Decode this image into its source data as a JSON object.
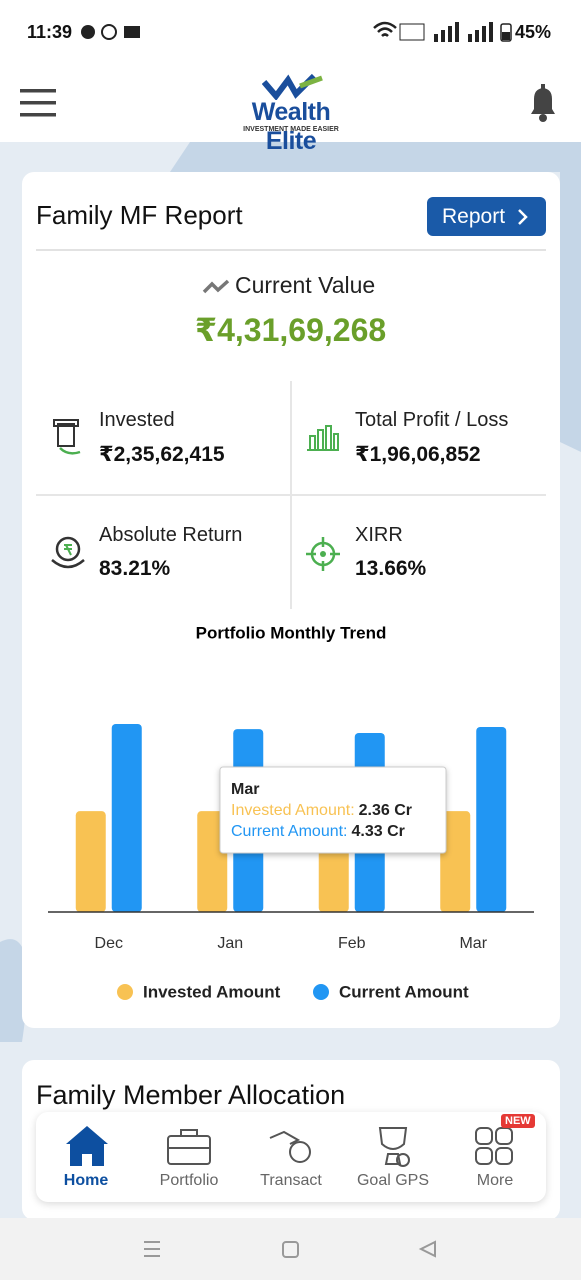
{
  "status_bar": {
    "time": "11:39",
    "battery": "45%"
  },
  "header": {
    "brand": "Wealth Elite",
    "tagline": "INVESTMENT MADE EASIER"
  },
  "report_card": {
    "title": "Family MF Report",
    "button": "Report",
    "current_value_label": "Current Value",
    "current_value": "₹4,31,69,268",
    "stats": [
      {
        "label": "Invested",
        "value": "₹2,35,62,415"
      },
      {
        "label": "Total Profit / Loss",
        "value": "₹1,96,06,852"
      },
      {
        "label": "Absolute Return",
        "value": "83.21%"
      },
      {
        "label": "XIRR",
        "value": "13.66%"
      }
    ]
  },
  "chart_data": {
    "type": "bar",
    "title": "Portfolio Monthly Trend",
    "categories": [
      "Dec",
      "Jan",
      "Feb",
      "Mar"
    ],
    "series": [
      {
        "name": "Invested Amount",
        "color": "#f8c253",
        "values": [
          2.36,
          2.36,
          2.36,
          2.36
        ],
        "value_labels": [
          null,
          null,
          null,
          "2.36 Cr"
        ]
      },
      {
        "name": "Current Amount",
        "color": "#2196f3",
        "values": [
          4.4,
          4.28,
          4.19,
          4.33
        ],
        "value_labels": [
          null,
          null,
          null,
          "4.33 Cr"
        ]
      }
    ],
    "tooltip": {
      "labels": [
        "Invested Amount:",
        "Current Amount:"
      ]
    }
  },
  "allocation": {
    "title": "Family Member Allocation"
  },
  "bottom_nav": {
    "items": [
      "Home",
      "Portfolio",
      "Transact",
      "Goal GPS",
      "More"
    ],
    "badge": "NEW"
  }
}
